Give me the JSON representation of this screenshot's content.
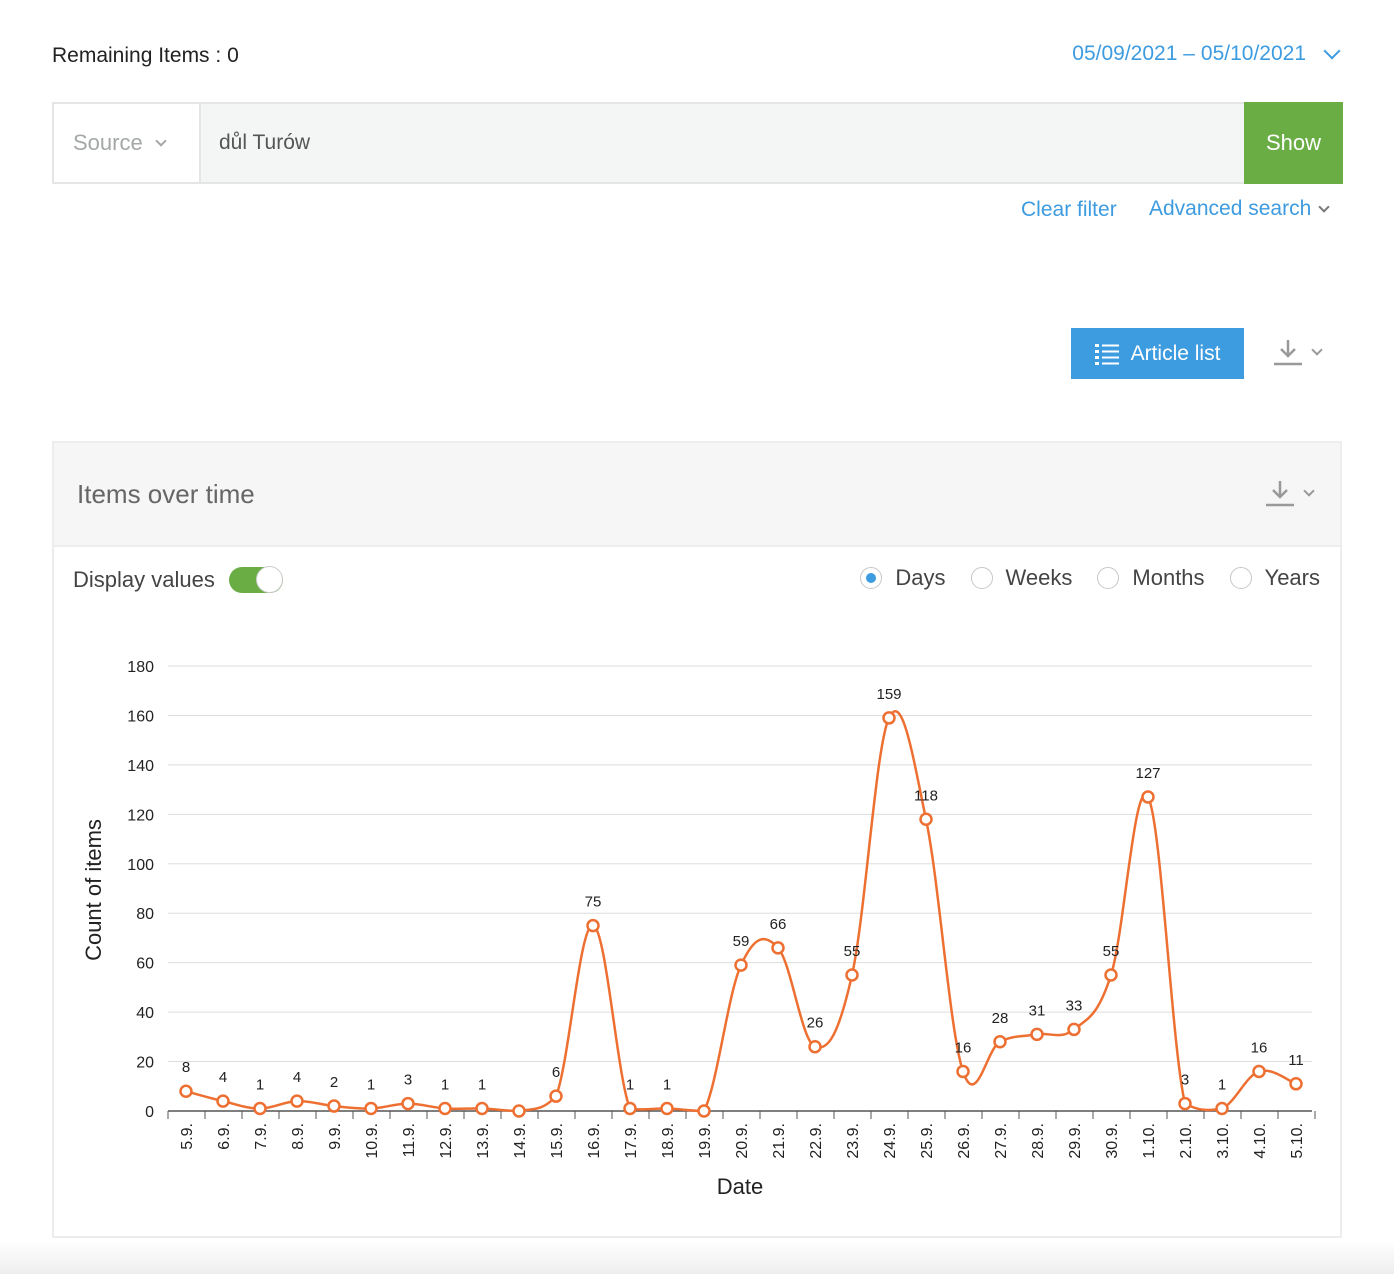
{
  "header": {
    "remaining_label": "Remaining Items : 0",
    "date_from": "05/09/2021 –",
    "date_to": "05/10/2021"
  },
  "search": {
    "source_label": "Source",
    "query_value": "důl Turów",
    "show_label": "Show",
    "clear_filter_label": "Clear filter",
    "advanced_search_label": "Advanced search"
  },
  "toolbar": {
    "article_list_label": "Article list"
  },
  "panel": {
    "title": "Items over time",
    "display_values_label": "Display values",
    "display_values_on": true,
    "periods": [
      {
        "label": "Days",
        "selected": true
      },
      {
        "label": "Weeks",
        "selected": false
      },
      {
        "label": "Months",
        "selected": false
      },
      {
        "label": "Years",
        "selected": false
      }
    ]
  },
  "colors": {
    "accent_blue": "#3d9be0",
    "show_green": "#6aad45",
    "line_orange": "#ed7032"
  },
  "chart_data": {
    "type": "line",
    "xlabel": "Date",
    "ylabel": "Count of items",
    "ylim": [
      0,
      180
    ],
    "yticks": [
      0,
      20,
      40,
      60,
      80,
      100,
      120,
      140,
      160,
      180
    ],
    "categories": [
      "5.9.",
      "6.9.",
      "7.9.",
      "8.9.",
      "9.9.",
      "10.9.",
      "11.9.",
      "12.9.",
      "13.9.",
      "14.9.",
      "15.9.",
      "16.9.",
      "17.9.",
      "18.9.",
      "19.9.",
      "20.9.",
      "21.9.",
      "22.9.",
      "23.9.",
      "24.9.",
      "25.9.",
      "26.9.",
      "27.9.",
      "28.9.",
      "29.9.",
      "30.9.",
      "1.10.",
      "2.10.",
      "3.10.",
      "4.10.",
      "5.10."
    ],
    "series": [
      {
        "name": "Items",
        "values": [
          8,
          4,
          1,
          4,
          2,
          1,
          3,
          1,
          1,
          0,
          6,
          75,
          1,
          1,
          0,
          59,
          66,
          26,
          55,
          159,
          118,
          16,
          28,
          31,
          33,
          55,
          127,
          3,
          1,
          16,
          11
        ]
      }
    ],
    "data_labels": [
      "8",
      "4",
      "1",
      "4",
      "2",
      "1",
      "3",
      "1",
      "1",
      "",
      "6",
      "75",
      "1",
      "1",
      "",
      "59",
      "66",
      "26",
      "55",
      "159",
      "118",
      "16",
      "28",
      "31",
      "33",
      "55",
      "127",
      "3",
      "1",
      "16",
      "11"
    ]
  }
}
